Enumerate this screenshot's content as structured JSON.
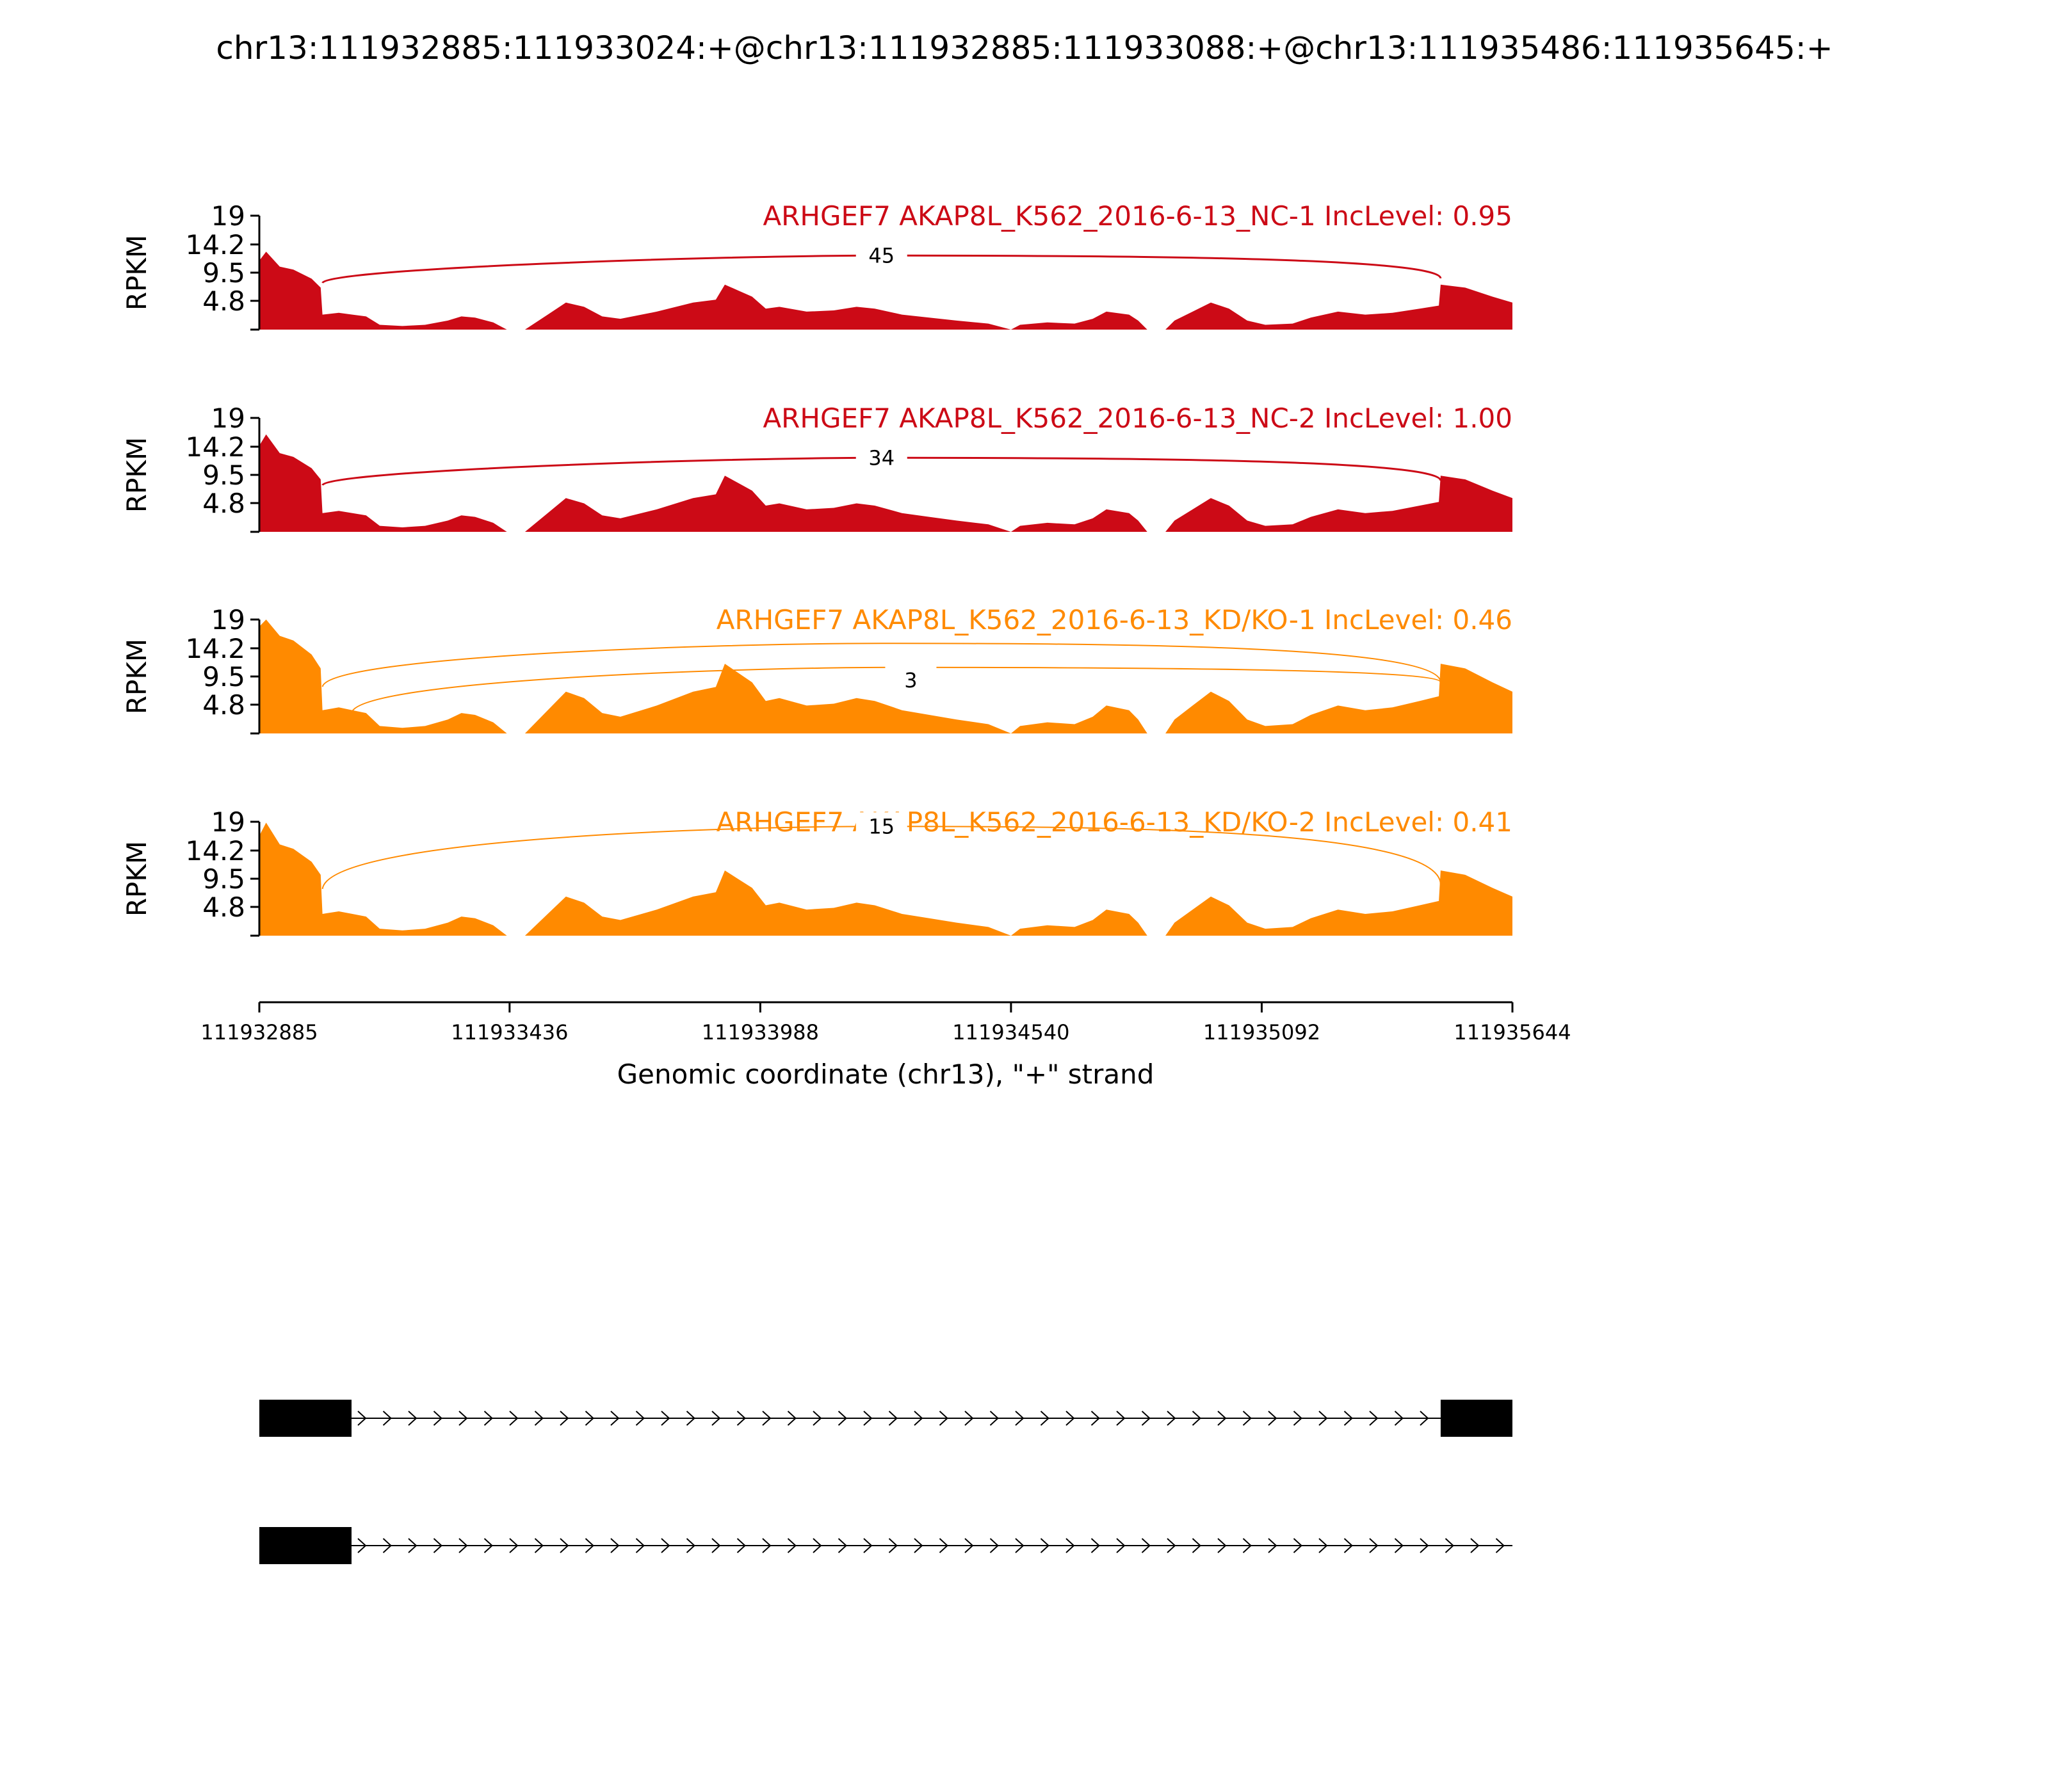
{
  "title": "chr13:111932885:111933024:+@chr13:111932885:111933088:+@chr13:111935486:111935645:+",
  "chart_data": {
    "type": "area",
    "subtype": "sashimi",
    "ylabel": "RPKM",
    "xlabel": "Genomic coordinate (chr13), \"+\" strand",
    "xlim": [
      111932885,
      111935644
    ],
    "x_ticks": [
      "111932885",
      "111933436",
      "111933988",
      "111934540",
      "111935092",
      "111935644"
    ],
    "y_ticks": [
      "19",
      "14.2",
      "9.5",
      "4.8"
    ],
    "ylim": [
      0,
      19
    ],
    "colors": {
      "nc": "#cc0a16",
      "kd": "#ff8a00"
    },
    "coverage_template": [
      [
        111932885,
        11.5
      ],
      [
        111932900,
        13
      ],
      [
        111932930,
        10.5
      ],
      [
        111932960,
        10
      ],
      [
        111933000,
        8.5
      ],
      [
        111933020,
        7
      ],
      [
        111933024,
        2.5
      ],
      [
        111933060,
        2.8
      ],
      [
        111933090,
        2.5
      ],
      [
        111933120,
        2.2
      ],
      [
        111933150,
        0.8
      ],
      [
        111933200,
        0.6
      ],
      [
        111933250,
        0.8
      ],
      [
        111933300,
        1.5
      ],
      [
        111933330,
        2.2
      ],
      [
        111933360,
        2.0
      ],
      [
        111933400,
        1.2
      ],
      [
        111933430,
        0
      ],
      [
        111933470,
        0
      ],
      [
        111933520,
        2.5
      ],
      [
        111933560,
        4.5
      ],
      [
        111933600,
        3.8
      ],
      [
        111933640,
        2.2
      ],
      [
        111933680,
        1.8
      ],
      [
        111933760,
        3.0
      ],
      [
        111933840,
        4.5
      ],
      [
        111933890,
        5.0
      ],
      [
        111933910,
        7.5
      ],
      [
        111933940,
        6.5
      ],
      [
        111933970,
        5.5
      ],
      [
        111934000,
        3.5
      ],
      [
        111934030,
        3.8
      ],
      [
        111934090,
        3.0
      ],
      [
        111934150,
        3.2
      ],
      [
        111934200,
        3.8
      ],
      [
        111934240,
        3.5
      ],
      [
        111934300,
        2.5
      ],
      [
        111934360,
        2.0
      ],
      [
        111934420,
        1.5
      ],
      [
        111934490,
        1.0
      ],
      [
        111934540,
        0
      ],
      [
        111934560,
        0.8
      ],
      [
        111934620,
        1.2
      ],
      [
        111934680,
        1.0
      ],
      [
        111934720,
        1.8
      ],
      [
        111934750,
        3.0
      ],
      [
        111934800,
        2.5
      ],
      [
        111934820,
        1.5
      ],
      [
        111934840,
        0
      ],
      [
        111934880,
        0
      ],
      [
        111934900,
        1.5
      ],
      [
        111934940,
        3.0
      ],
      [
        111934980,
        4.5
      ],
      [
        111935020,
        3.5
      ],
      [
        111935060,
        1.5
      ],
      [
        111935100,
        0.8
      ],
      [
        111935160,
        1.0
      ],
      [
        111935200,
        2.0
      ],
      [
        111935260,
        3.0
      ],
      [
        111935320,
        2.5
      ],
      [
        111935380,
        2.8
      ],
      [
        111935440,
        3.5
      ],
      [
        111935482,
        4.0
      ],
      [
        111935486,
        7.5
      ],
      [
        111935540,
        7.0
      ],
      [
        111935600,
        5.5
      ],
      [
        111935644,
        4.5
      ]
    ],
    "samples": [
      {
        "label": "ARHGEF7 AKAP8L_K562_2016-6-13_NC-1 IncLevel: 0.95",
        "group": "nc",
        "scale": 1.0,
        "junctions": [
          {
            "start": 111933024,
            "end": 111935486,
            "count": "45"
          }
        ]
      },
      {
        "label": "ARHGEF7 AKAP8L_K562_2016-6-13_NC-2 IncLevel: 1.00",
        "group": "nc",
        "scale": 1.25,
        "junctions": [
          {
            "start": 111933024,
            "end": 111935486,
            "count": "34"
          }
        ]
      },
      {
        "label": "ARHGEF7 AKAP8L_K562_2016-6-13_KD/KO-1 IncLevel: 0.46",
        "group": "kd",
        "scale": 1.55,
        "junctions": [
          {
            "start": 111933024,
            "end": 111935486,
            "count": ""
          },
          {
            "start": 111933088,
            "end": 111935486,
            "count": "3"
          }
        ]
      },
      {
        "label": "ARHGEF7 AKAP8L_K562_2016-6-13_KD/KO-2 IncLevel: 0.41",
        "group": "kd",
        "scale": 1.45,
        "junctions": [
          {
            "start": 111933024,
            "end": 111935486,
            "count": "15"
          }
        ]
      }
    ],
    "transcripts": [
      {
        "exons": [
          [
            111932885,
            111933088
          ],
          [
            111935486,
            111935644
          ]
        ]
      },
      {
        "exons": [
          [
            111932885,
            111933088
          ]
        ]
      }
    ]
  }
}
